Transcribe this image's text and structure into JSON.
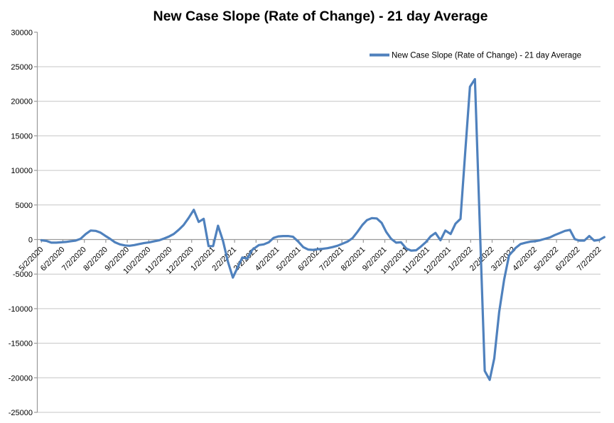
{
  "chart_data": {
    "type": "line",
    "title": "New Case Slope (Rate of Change) - 21 day Average",
    "legend": {
      "label": "New Case Slope (Rate of Change) - 21 day Average",
      "position": "inside-top-right"
    },
    "grid": true,
    "colors": {
      "line": "#4F81BD",
      "gridline": "#C6C6C6",
      "axis": "#9A9A9A",
      "text": "#000000",
      "background": "#FFFFFF"
    },
    "y_axis": {
      "min": -25000,
      "max": 30000,
      "step": 5000,
      "tick_labels": [
        "30000",
        "25000",
        "20000",
        "15000",
        "10000",
        "5000",
        "0",
        "-5000",
        "-10000",
        "-15000",
        "-20000",
        "-25000"
      ]
    },
    "x_tick_labels": [
      "5/2/2020",
      "6/2/2020",
      "7/2/2020",
      "8/2/2020",
      "9/2/2020",
      "10/2/2020",
      "11/2/2020",
      "12/2/2020",
      "1/2/2021",
      "2/2/2021",
      "3/2/2021",
      "4/2/2021",
      "5/2/2021",
      "6/2/2021",
      "7/2/2021",
      "8/2/2021",
      "9/2/2021",
      "10/2/2021",
      "11/2/2021",
      "12/2/2021",
      "1/2/2022",
      "2/2/2022",
      "3/2/2022",
      "4/2/2022",
      "5/2/2022",
      "6/2/2022",
      "7/2/2022"
    ],
    "series": [
      {
        "name": "New Case Slope (Rate of Change) - 21 day Average",
        "points": [
          [
            "5/2/2020",
            -100
          ],
          [
            "5/9/2020",
            -200
          ],
          [
            "5/16/2020",
            -450
          ],
          [
            "5/23/2020",
            -450
          ],
          [
            "5/30/2020",
            -400
          ],
          [
            "6/6/2020",
            -350
          ],
          [
            "6/13/2020",
            -250
          ],
          [
            "6/20/2020",
            -150
          ],
          [
            "6/27/2020",
            100
          ],
          [
            "7/4/2020",
            800
          ],
          [
            "7/11/2020",
            1300
          ],
          [
            "7/18/2020",
            1250
          ],
          [
            "7/25/2020",
            1000
          ],
          [
            "8/1/2020",
            550
          ],
          [
            "8/8/2020",
            100
          ],
          [
            "8/15/2020",
            -400
          ],
          [
            "8/22/2020",
            -700
          ],
          [
            "8/29/2020",
            -850
          ],
          [
            "9/5/2020",
            -900
          ],
          [
            "9/12/2020",
            -800
          ],
          [
            "9/19/2020",
            -650
          ],
          [
            "9/26/2020",
            -500
          ],
          [
            "10/3/2020",
            -400
          ],
          [
            "10/10/2020",
            -250
          ],
          [
            "10/17/2020",
            -100
          ],
          [
            "10/24/2020",
            150
          ],
          [
            "10/31/2020",
            450
          ],
          [
            "11/7/2020",
            800
          ],
          [
            "11/14/2020",
            1400
          ],
          [
            "11/21/2020",
            2100
          ],
          [
            "11/28/2020",
            3100
          ],
          [
            "12/5/2020",
            4300
          ],
          [
            "12/12/2020",
            2550
          ],
          [
            "12/19/2020",
            3000
          ],
          [
            "12/26/2020",
            -950
          ],
          [
            "1/2/2021",
            -950
          ],
          [
            "1/9/2021",
            2000
          ],
          [
            "1/16/2021",
            -200
          ],
          [
            "1/23/2021",
            -3200
          ],
          [
            "1/30/2021",
            -5500
          ],
          [
            "2/6/2021",
            -4100
          ],
          [
            "2/13/2021",
            -2600
          ],
          [
            "2/20/2021",
            -2750
          ],
          [
            "2/27/2021",
            -1500
          ],
          [
            "3/6/2021",
            -800
          ],
          [
            "3/13/2021",
            -700
          ],
          [
            "3/20/2021",
            -400
          ],
          [
            "3/27/2021",
            250
          ],
          [
            "4/3/2021",
            450
          ],
          [
            "4/10/2021",
            500
          ],
          [
            "4/17/2021",
            500
          ],
          [
            "4/24/2021",
            400
          ],
          [
            "5/1/2021",
            -300
          ],
          [
            "5/8/2021",
            -1100
          ],
          [
            "5/15/2021",
            -1450
          ],
          [
            "5/22/2021",
            -1500
          ],
          [
            "5/29/2021",
            -1400
          ],
          [
            "6/5/2021",
            -1350
          ],
          [
            "6/12/2021",
            -1250
          ],
          [
            "6/19/2021",
            -1100
          ],
          [
            "6/26/2021",
            -900
          ],
          [
            "7/3/2021",
            -600
          ],
          [
            "7/10/2021",
            -300
          ],
          [
            "7/17/2021",
            200
          ],
          [
            "7/24/2021",
            1100
          ],
          [
            "7/31/2021",
            2100
          ],
          [
            "8/7/2021",
            2800
          ],
          [
            "8/14/2021",
            3100
          ],
          [
            "8/21/2021",
            3050
          ],
          [
            "8/28/2021",
            2400
          ],
          [
            "9/4/2021",
            1100
          ],
          [
            "9/11/2021",
            100
          ],
          [
            "9/18/2021",
            -450
          ],
          [
            "9/25/2021",
            -400
          ],
          [
            "10/2/2021",
            -1300
          ],
          [
            "10/9/2021",
            -1600
          ],
          [
            "10/16/2021",
            -1550
          ],
          [
            "10/23/2021",
            -1000
          ],
          [
            "10/30/2021",
            -350
          ],
          [
            "11/6/2021",
            450
          ],
          [
            "11/13/2021",
            950
          ],
          [
            "11/20/2021",
            -100
          ],
          [
            "11/27/2021",
            1300
          ],
          [
            "12/4/2021",
            800
          ],
          [
            "12/11/2021",
            2300
          ],
          [
            "12/18/2021",
            3000
          ],
          [
            "12/25/2021",
            13000
          ],
          [
            "1/1/2022",
            22100
          ],
          [
            "1/8/2022",
            23200
          ],
          [
            "1/15/2022",
            2000
          ],
          [
            "1/22/2022",
            -19000
          ],
          [
            "1/29/2022",
            -20300
          ],
          [
            "2/5/2022",
            -17200
          ],
          [
            "2/12/2022",
            -10500
          ],
          [
            "2/19/2022",
            -5800
          ],
          [
            "2/26/2022",
            -2300
          ],
          [
            "3/5/2022",
            -1200
          ],
          [
            "3/12/2022",
            -650
          ],
          [
            "3/19/2022",
            -450
          ],
          [
            "3/26/2022",
            -300
          ],
          [
            "4/2/2022",
            -250
          ],
          [
            "4/9/2022",
            -100
          ],
          [
            "4/16/2022",
            100
          ],
          [
            "4/23/2022",
            300
          ],
          [
            "4/30/2022",
            650
          ],
          [
            "5/7/2022",
            950
          ],
          [
            "5/14/2022",
            1250
          ],
          [
            "5/21/2022",
            1400
          ],
          [
            "5/28/2022",
            50
          ],
          [
            "6/4/2022",
            -150
          ],
          [
            "6/11/2022",
            -150
          ],
          [
            "6/18/2022",
            500
          ],
          [
            "6/25/2022",
            -150
          ],
          [
            "7/2/2022",
            -50
          ],
          [
            "7/9/2022",
            350
          ]
        ]
      }
    ]
  }
}
